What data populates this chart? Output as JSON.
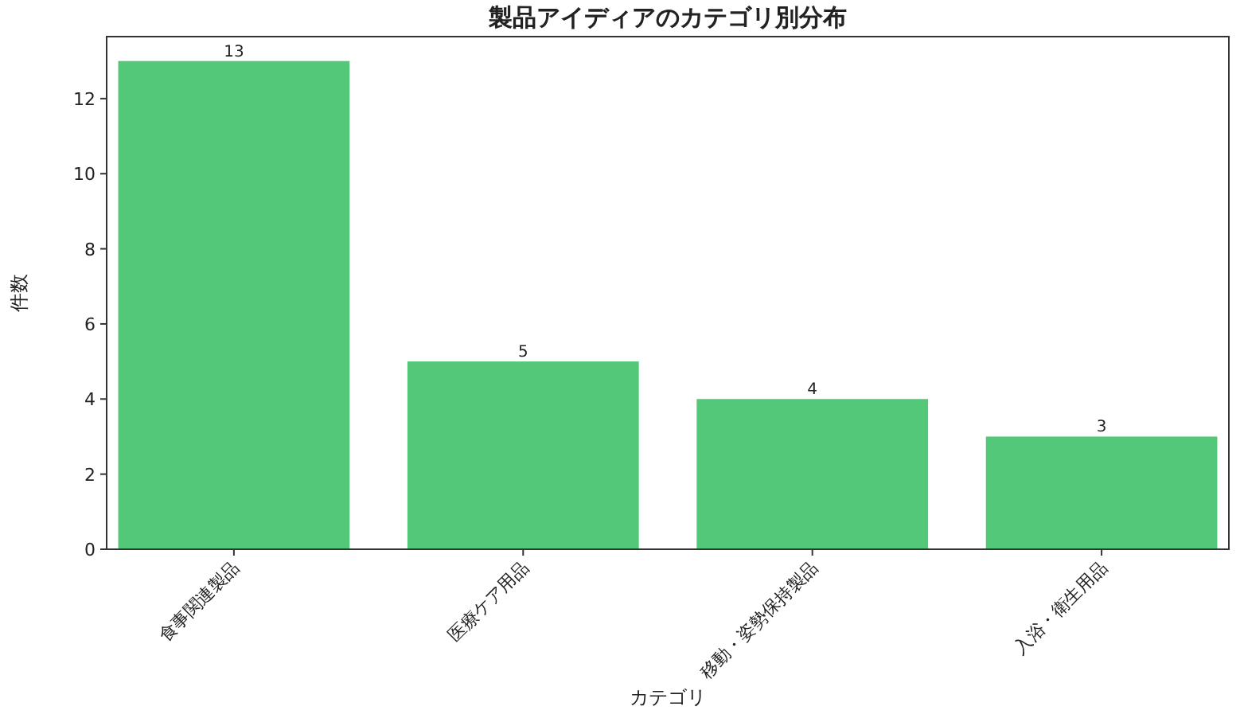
{
  "chart_data": {
    "type": "bar",
    "title": "製品アイディアのカテゴリ別分布",
    "xlabel": "カテゴリ",
    "ylabel": "件数",
    "categories": [
      "食事関連製品",
      "医療ケア用品",
      "移動・姿勢保持製品",
      "入浴・衛生用品"
    ],
    "values": [
      13,
      5,
      4,
      3
    ],
    "color": "#52c878",
    "ylim": [
      0,
      13.65
    ],
    "yticks": [
      0,
      2,
      4,
      6,
      8,
      10,
      12
    ],
    "grid": false,
    "data_labels": true
  }
}
